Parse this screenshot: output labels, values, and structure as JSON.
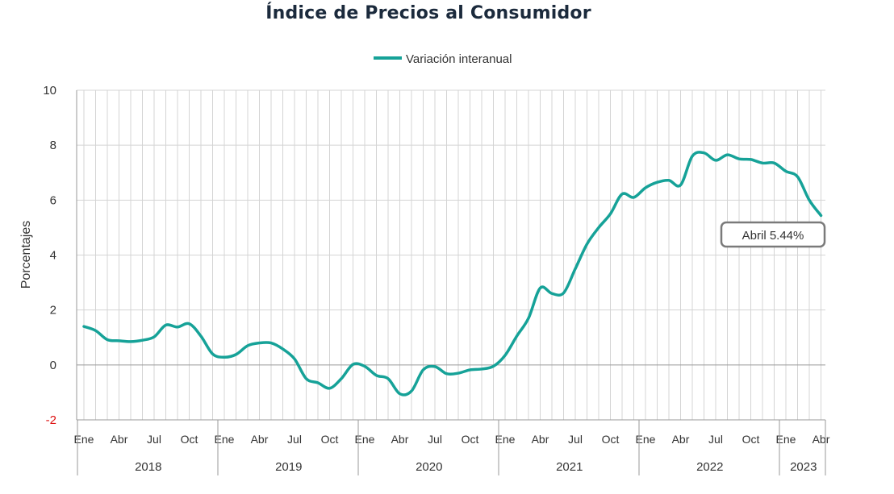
{
  "chart_data": {
    "type": "line",
    "title": "Índice de Precios al Consumidor",
    "ylabel": "Porcentajes",
    "xlabel": "",
    "ylim": [
      -2,
      10
    ],
    "yticks": [
      -2,
      0,
      2,
      4,
      6,
      8,
      10
    ],
    "grid": true,
    "legend": "top-center",
    "series_color": "#16a298",
    "x_month_labels": [
      "Ene",
      "Abr",
      "Jul",
      "Oct"
    ],
    "years": [
      "2018",
      "2019",
      "2020",
      "2021",
      "2022",
      "2023"
    ],
    "series": [
      {
        "name": "Variación interanual",
        "start": "2018-01",
        "end": "2023-04",
        "values": [
          1.4,
          1.25,
          0.92,
          0.88,
          0.85,
          0.9,
          1.02,
          1.45,
          1.38,
          1.5,
          1.05,
          0.4,
          0.28,
          0.38,
          0.7,
          0.8,
          0.8,
          0.58,
          0.22,
          -0.5,
          -0.65,
          -0.85,
          -0.5,
          0.02,
          -0.05,
          -0.38,
          -0.5,
          -1.05,
          -0.95,
          -0.18,
          -0.06,
          -0.32,
          -0.3,
          -0.18,
          -0.15,
          -0.05,
          0.35,
          1.05,
          1.7,
          2.8,
          2.6,
          2.62,
          3.5,
          4.4,
          5.0,
          5.5,
          6.22,
          6.1,
          6.45,
          6.65,
          6.72,
          6.55,
          7.6,
          7.72,
          7.45,
          7.65,
          7.5,
          7.48,
          7.35,
          7.35,
          7.05,
          6.85,
          6.0,
          5.44
        ]
      }
    ],
    "annotation": {
      "text": "Abril 5.44%",
      "date": "2023-04",
      "value": 5.44
    }
  }
}
